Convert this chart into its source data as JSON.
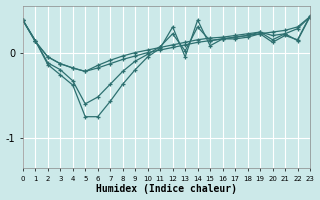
{
  "xlabel": "Humidex (Indice chaleur)",
  "background_color": "#cce9e9",
  "line_color": "#2d7070",
  "grid_color": "#b8d8d8",
  "xlim": [
    0,
    23
  ],
  "ylim": [
    -1.35,
    0.55
  ],
  "yticks": [
    0,
    -1
  ],
  "xtick_labels": [
    "0",
    "1",
    "2",
    "3",
    "4",
    "5",
    "6",
    "7",
    "8",
    "9",
    "10",
    "11",
    "12",
    "13",
    "14",
    "15",
    "16",
    "17",
    "18",
    "19",
    "20",
    "21",
    "22",
    "23"
  ],
  "series": [
    [
      0.38,
      0.13,
      -0.05,
      -0.13,
      -0.18,
      -0.22,
      -0.18,
      -0.13,
      -0.08,
      -0.04,
      0.0,
      0.03,
      0.06,
      0.09,
      0.12,
      0.14,
      0.16,
      0.18,
      0.2,
      0.22,
      0.24,
      0.26,
      0.3,
      0.42
    ],
    [
      0.38,
      0.13,
      -0.05,
      -0.13,
      -0.18,
      -0.22,
      -0.15,
      -0.09,
      -0.04,
      0.0,
      0.03,
      0.06,
      0.09,
      0.12,
      0.15,
      0.17,
      0.18,
      0.2,
      0.22,
      0.24,
      0.2,
      0.22,
      0.28,
      0.42
    ],
    [
      0.38,
      0.14,
      -0.12,
      -0.2,
      -0.33,
      -0.6,
      -0.52,
      -0.37,
      -0.22,
      -0.1,
      -0.02,
      0.07,
      0.22,
      0.02,
      0.3,
      0.14,
      0.16,
      0.18,
      0.2,
      0.24,
      0.15,
      0.22,
      0.14,
      0.42
    ],
    [
      0.38,
      0.14,
      -0.14,
      -0.26,
      -0.38,
      -0.75,
      -0.75,
      -0.57,
      -0.37,
      -0.2,
      -0.05,
      0.05,
      0.3,
      -0.05,
      0.38,
      0.08,
      0.16,
      0.16,
      0.18,
      0.22,
      0.12,
      0.2,
      0.15,
      0.43
    ]
  ]
}
